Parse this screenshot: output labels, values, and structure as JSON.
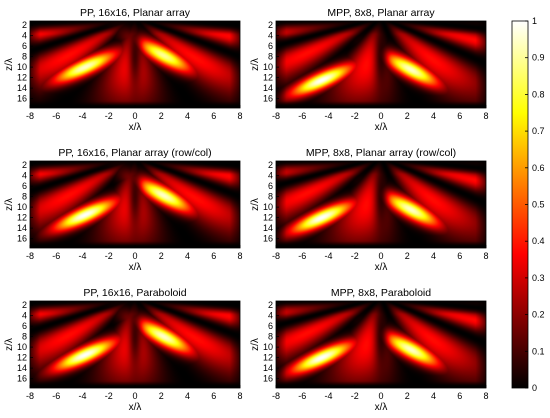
{
  "chart_data": [
    {
      "type": "heatmap",
      "title": "PP, 16x16, Planar array",
      "xlabel": "x/λ",
      "ylabel": "z/λ",
      "xlim": [
        -8,
        8
      ],
      "ylim": [
        1.2,
        17.8
      ],
      "y_reversed": true,
      "xticks": [
        -8,
        -6,
        -4,
        -2,
        0,
        2,
        4,
        6,
        8
      ],
      "yticks": [
        2,
        4,
        6,
        8,
        10,
        12,
        14,
        16
      ],
      "lobes": [
        {
          "x": -3.8,
          "z": 10.0,
          "peak": 0.95
        },
        {
          "x": 2.2,
          "z": 7.8,
          "peak": 0.9
        }
      ]
    },
    {
      "type": "heatmap",
      "title": "MPP, 8x8, Planar array",
      "xlabel": "x/λ",
      "ylabel": "z/λ",
      "xlim": [
        -8,
        8
      ],
      "ylim": [
        1.2,
        17.8
      ],
      "y_reversed": true,
      "xticks": [
        -8,
        -6,
        -4,
        -2,
        0,
        2,
        4,
        6,
        8
      ],
      "yticks": [
        2,
        4,
        6,
        8,
        10,
        12,
        14,
        16
      ],
      "lobes": [
        {
          "x": -4.5,
          "z": 12.5,
          "peak": 1.0
        },
        {
          "x": 2.3,
          "z": 10.5,
          "peak": 0.95
        }
      ]
    },
    {
      "type": "heatmap",
      "title": "PP, 16x16, Planar array (row/col)",
      "xlabel": "x/λ",
      "ylabel": "z/λ",
      "xlim": [
        -8,
        8
      ],
      "ylim": [
        1.2,
        17.8
      ],
      "y_reversed": true,
      "xticks": [
        -8,
        -6,
        -4,
        -2,
        0,
        2,
        4,
        6,
        8
      ],
      "yticks": [
        2,
        4,
        6,
        8,
        10,
        12,
        14,
        16
      ],
      "lobes": [
        {
          "x": -3.8,
          "z": 11.5,
          "peak": 1.0
        },
        {
          "x": 2.2,
          "z": 7.8,
          "peak": 0.95
        }
      ]
    },
    {
      "type": "heatmap",
      "title": "MPP, 8x8, Planar array (row/col)",
      "xlabel": "x/λ",
      "ylabel": "z/λ",
      "xlim": [
        -8,
        8
      ],
      "ylim": [
        1.2,
        17.8
      ],
      "y_reversed": true,
      "xticks": [
        -8,
        -6,
        -4,
        -2,
        0,
        2,
        4,
        6,
        8
      ],
      "yticks": [
        2,
        4,
        6,
        8,
        10,
        12,
        14,
        16
      ],
      "lobes": [
        {
          "x": -4.5,
          "z": 12.0,
          "peak": 1.0
        },
        {
          "x": 2.3,
          "z": 10.5,
          "peak": 0.95
        }
      ]
    },
    {
      "type": "heatmap",
      "title": "PP, 16x16, Paraboloid",
      "xlabel": "x/λ",
      "ylabel": "z/λ",
      "xlim": [
        -8,
        8
      ],
      "ylim": [
        1.2,
        17.8
      ],
      "y_reversed": true,
      "xticks": [
        -8,
        -6,
        -4,
        -2,
        0,
        2,
        4,
        6,
        8
      ],
      "yticks": [
        2,
        4,
        6,
        8,
        10,
        12,
        14,
        16
      ],
      "lobes": [
        {
          "x": -3.8,
          "z": 11.5,
          "peak": 1.0
        },
        {
          "x": 2.2,
          "z": 8.0,
          "peak": 0.95
        }
      ]
    },
    {
      "type": "heatmap",
      "title": "MPP, 8x8, Paraboloid",
      "xlabel": "x/λ",
      "ylabel": "z/λ",
      "xlim": [
        -8,
        8
      ],
      "ylim": [
        1.2,
        17.8
      ],
      "y_reversed": true,
      "xticks": [
        -8,
        -6,
        -4,
        -2,
        0,
        2,
        4,
        6,
        8
      ],
      "yticks": [
        2,
        4,
        6,
        8,
        10,
        12,
        14,
        16
      ],
      "lobes": [
        {
          "x": -4.5,
          "z": 12.0,
          "peak": 1.0
        },
        {
          "x": 2.3,
          "z": 10.5,
          "peak": 0.95
        }
      ]
    }
  ],
  "colorbar": {
    "colormap": "hot",
    "range": [
      0,
      1
    ],
    "ticks": [
      "0",
      "0.1",
      "0.2",
      "0.3",
      "0.4",
      "0.5",
      "0.6",
      "0.7",
      "0.8",
      "0.9",
      "1"
    ]
  }
}
